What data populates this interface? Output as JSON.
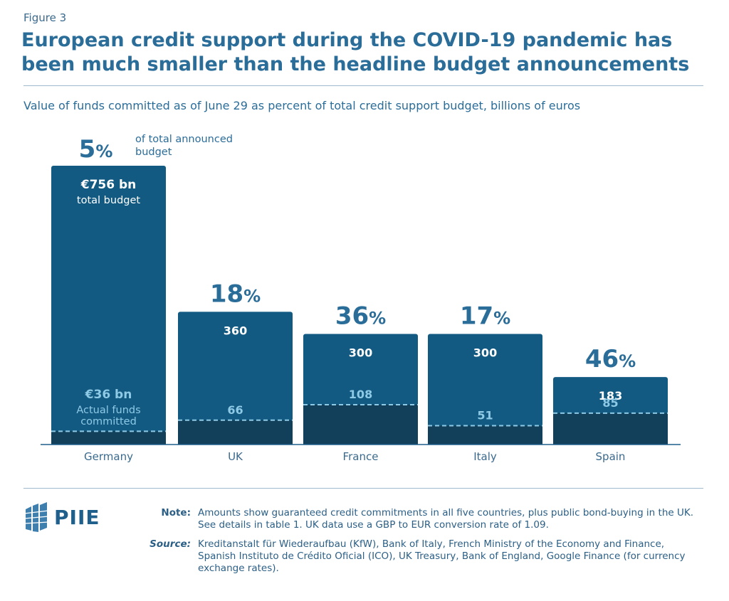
{
  "figure_label": "Figure 3",
  "title": "European credit support during the COVID-19 pandemic has been much smaller than the headline budget announcements",
  "subtitle": "Value of funds committed as of June 29 as percent of total credit support budget, billions of euros",
  "colors": {
    "budget_bar": "#125a82",
    "committed_bar": "#123f5a",
    "pct_text": "#2b6d99",
    "committed_text": "#8ecae6",
    "dashed_line": "#8ecae6"
  },
  "chart_data": {
    "type": "bar",
    "categories": [
      "Germany",
      "UK",
      "France",
      "Italy",
      "Spain"
    ],
    "series": [
      {
        "name": "total budget",
        "values": [
          756,
          360,
          300,
          300,
          183
        ]
      },
      {
        "name": "Actual funds committed",
        "values": [
          36,
          66,
          108,
          51,
          85
        ]
      }
    ],
    "percent_labels": [
      "5",
      "18",
      "36",
      "17",
      "46"
    ],
    "percent_suffix": "%",
    "pct_annotation": "of total announced budget",
    "budget_labels": [
      "€756 bn",
      "360",
      "300",
      "300",
      "183"
    ],
    "budget_sublabel": "total budget",
    "committed_labels": [
      "€36 bn",
      "66",
      "108",
      "51",
      "85"
    ],
    "committed_sublabel": "Actual funds committed"
  },
  "notes": {
    "note_label": "Note:",
    "note_text": "Amounts show guaranteed credit commitments in all five countries, plus public bond-buying in the UK. See details in table 1. UK data use a GBP to EUR conversion rate of 1.09.",
    "source_label": "Source:",
    "source_text": "Kreditanstalt für Wiederaufbau (KfW), Bank of Italy, French Ministry of the Economy and Finance, Spanish Instituto de Crédito Oficial (ICO), UK Treasury, Bank of England, Google Finance (for currency exchange rates)."
  },
  "logo": {
    "text": "PIIE",
    "icon": "piie-building-icon"
  }
}
